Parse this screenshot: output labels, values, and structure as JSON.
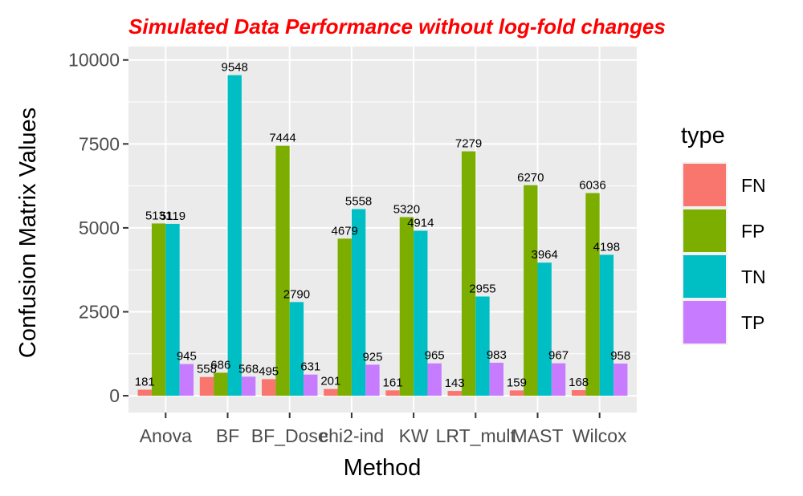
{
  "chart_data": {
    "type": "bar",
    "title": "Simulated Data Performance without log-fold changes",
    "xlabel": "Method",
    "ylabel": "Confusion Matrix Values",
    "categories": [
      "Anova",
      "BF",
      "BF_Dose",
      "chi2-ind",
      "KW",
      "LRT_mult",
      "MAST",
      "Wilcox"
    ],
    "ylim": [
      -500,
      10400
    ],
    "yticks": [
      0,
      2500,
      5000,
      7500,
      10000
    ],
    "grid": true,
    "legend": {
      "title": "type",
      "position": "right"
    },
    "series": [
      {
        "name": "FN",
        "color": "#F8766D",
        "values": [
          181,
          558,
          495,
          201,
          161,
          143,
          159,
          168
        ]
      },
      {
        "name": "FP",
        "color": "#7CAE00",
        "values": [
          5131,
          686,
          7444,
          4679,
          5320,
          7279,
          6270,
          6036
        ]
      },
      {
        "name": "TN",
        "color": "#00BFC4",
        "values": [
          5119,
          9548,
          2790,
          5558,
          4914,
          2955,
          3964,
          4198
        ]
      },
      {
        "name": "TP",
        "color": "#C77CFF",
        "values": [
          945,
          568,
          631,
          925,
          965,
          983,
          967,
          958
        ]
      }
    ]
  }
}
